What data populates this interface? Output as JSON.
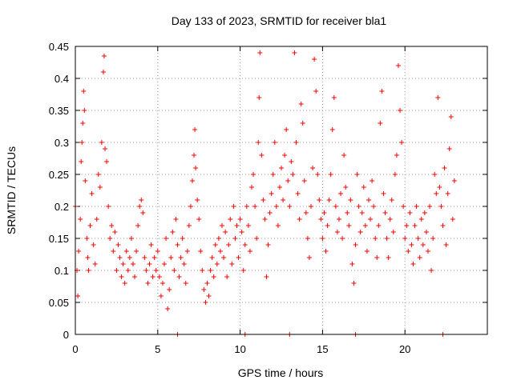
{
  "chart_data": {
    "type": "scatter",
    "title": "Day 133 of 2023, SRMTID for receiver bla1",
    "xlabel": "GPS time / hours",
    "ylabel": "SRMTID / TECUs",
    "xlim": [
      0,
      25
    ],
    "ylim": [
      0,
      0.45
    ],
    "xticks": [
      0,
      5,
      10,
      15,
      20
    ],
    "xtick_labels": [
      "0",
      "5",
      "10",
      "15",
      "20"
    ],
    "yticks": [
      0,
      0.05,
      0.1,
      0.15,
      0.2,
      0.25,
      0.3,
      0.35,
      0.4,
      0.45
    ],
    "ytick_labels": [
      "0",
      "0.05",
      "0.1",
      "0.15",
      "0.2",
      "0.25",
      "0.3",
      "0.35",
      "0.4",
      "0.45"
    ],
    "grid": true,
    "marker": "+",
    "color": "#ff0000",
    "series": [
      {
        "name": "SRMTID",
        "points": [
          [
            0.0,
            0.2
          ],
          [
            0.1,
            0.1
          ],
          [
            0.15,
            0.06
          ],
          [
            0.2,
            0.13
          ],
          [
            0.3,
            0.18
          ],
          [
            0.35,
            0.27
          ],
          [
            0.4,
            0.3
          ],
          [
            0.45,
            0.33
          ],
          [
            0.5,
            0.38
          ],
          [
            0.55,
            0.35
          ],
          [
            0.6,
            0.24
          ],
          [
            0.7,
            0.15
          ],
          [
            0.75,
            0.12
          ],
          [
            0.8,
            0.1
          ],
          [
            0.9,
            0.17
          ],
          [
            1.0,
            0.22
          ],
          [
            1.1,
            0.14
          ],
          [
            1.2,
            0.11
          ],
          [
            1.3,
            0.18
          ],
          [
            1.4,
            0.25
          ],
          [
            1.5,
            0.23
          ],
          [
            1.6,
            0.3
          ],
          [
            1.7,
            0.41
          ],
          [
            1.75,
            0.435
          ],
          [
            1.8,
            0.29
          ],
          [
            1.9,
            0.27
          ],
          [
            2.0,
            0.2
          ],
          [
            2.1,
            0.15
          ],
          [
            2.2,
            0.17
          ],
          [
            2.3,
            0.13
          ],
          [
            2.4,
            0.16
          ],
          [
            2.5,
            0.1
          ],
          [
            2.6,
            0.14
          ],
          [
            2.7,
            0.12
          ],
          [
            2.8,
            0.09
          ],
          [
            2.9,
            0.11
          ],
          [
            3.0,
            0.08
          ],
          [
            3.1,
            0.13
          ],
          [
            3.2,
            0.1
          ],
          [
            3.3,
            0.12
          ],
          [
            3.4,
            0.15
          ],
          [
            3.5,
            0.11
          ],
          [
            3.6,
            0.09
          ],
          [
            3.7,
            0.13
          ],
          [
            3.8,
            0.17
          ],
          [
            3.9,
            0.2
          ],
          [
            4.0,
            0.21
          ],
          [
            4.1,
            0.19
          ],
          [
            4.2,
            0.12
          ],
          [
            4.3,
            0.1
          ],
          [
            4.4,
            0.08
          ],
          [
            4.5,
            0.11
          ],
          [
            4.6,
            0.14
          ],
          [
            4.7,
            0.09
          ],
          [
            4.8,
            0.12
          ],
          [
            4.9,
            0.1
          ],
          [
            5.0,
            0.13
          ],
          [
            5.1,
            0.09
          ],
          [
            5.2,
            0.06
          ],
          [
            5.3,
            0.08
          ],
          [
            5.4,
            0.11
          ],
          [
            5.5,
            0.15
          ],
          [
            5.6,
            0.04
          ],
          [
            5.7,
            0.07
          ],
          [
            5.8,
            0.12
          ],
          [
            5.9,
            0.16
          ],
          [
            6.0,
            0.1
          ],
          [
            6.1,
            0.18
          ],
          [
            6.2,
            0.14
          ],
          [
            6.3,
            0.09
          ],
          [
            6.4,
            0.12
          ],
          [
            6.5,
            0.15
          ],
          [
            6.6,
            0.11
          ],
          [
            6.7,
            0.08
          ],
          [
            6.8,
            0.13
          ],
          [
            6.9,
            0.17
          ],
          [
            7.0,
            0.2
          ],
          [
            7.1,
            0.24
          ],
          [
            7.2,
            0.28
          ],
          [
            7.25,
            0.32
          ],
          [
            7.3,
            0.26
          ],
          [
            7.4,
            0.21
          ],
          [
            7.5,
            0.18
          ],
          [
            7.6,
            0.13
          ],
          [
            7.7,
            0.1
          ],
          [
            7.8,
            0.07
          ],
          [
            7.9,
            0.05
          ],
          [
            8.0,
            0.08
          ],
          [
            8.1,
            0.06
          ],
          [
            8.2,
            0.1
          ],
          [
            8.3,
            0.12
          ],
          [
            8.4,
            0.09
          ],
          [
            8.5,
            0.14
          ],
          [
            8.6,
            0.11
          ],
          [
            8.7,
            0.15
          ],
          [
            8.8,
            0.13
          ],
          [
            8.9,
            0.17
          ],
          [
            9.0,
            0.12
          ],
          [
            9.1,
            0.16
          ],
          [
            9.2,
            0.09
          ],
          [
            9.3,
            0.14
          ],
          [
            9.4,
            0.18
          ],
          [
            9.5,
            0.11
          ],
          [
            9.6,
            0.2
          ],
          [
            9.7,
            0.15
          ],
          [
            9.8,
            0.17
          ],
          [
            9.9,
            0.12
          ],
          [
            10.0,
            0.18
          ],
          [
            10.1,
            0.16
          ],
          [
            10.2,
            0.1
          ],
          [
            10.3,
            0.14
          ],
          [
            10.4,
            0.2
          ],
          [
            10.5,
            0.17
          ],
          [
            10.6,
            0.13
          ],
          [
            10.7,
            0.23
          ],
          [
            10.8,
            0.25
          ],
          [
            10.9,
            0.2
          ],
          [
            11.0,
            0.15
          ],
          [
            11.1,
            0.3
          ],
          [
            11.15,
            0.37
          ],
          [
            11.2,
            0.44
          ],
          [
            11.3,
            0.28
          ],
          [
            11.4,
            0.21
          ],
          [
            11.5,
            0.18
          ],
          [
            11.6,
            0.09
          ],
          [
            11.7,
            0.14
          ],
          [
            11.8,
            0.19
          ],
          [
            11.9,
            0.22
          ],
          [
            12.0,
            0.25
          ],
          [
            12.1,
            0.3
          ],
          [
            12.2,
            0.2
          ],
          [
            12.3,
            0.17
          ],
          [
            12.4,
            0.23
          ],
          [
            12.5,
            0.26
          ],
          [
            12.6,
            0.21
          ],
          [
            12.7,
            0.28
          ],
          [
            12.8,
            0.32
          ],
          [
            12.9,
            0.24
          ],
          [
            13.0,
            0.2
          ],
          [
            13.1,
            0.27
          ],
          [
            13.2,
            0.25
          ],
          [
            13.3,
            0.44
          ],
          [
            13.4,
            0.3
          ],
          [
            13.5,
            0.22
          ],
          [
            13.6,
            0.18
          ],
          [
            13.7,
            0.36
          ],
          [
            13.8,
            0.33
          ],
          [
            13.9,
            0.24
          ],
          [
            14.0,
            0.19
          ],
          [
            14.1,
            0.15
          ],
          [
            14.2,
            0.12
          ],
          [
            14.3,
            0.2
          ],
          [
            14.4,
            0.26
          ],
          [
            14.5,
            0.43
          ],
          [
            14.6,
            0.38
          ],
          [
            14.7,
            0.25
          ],
          [
            14.8,
            0.21
          ],
          [
            14.9,
            0.18
          ],
          [
            15.0,
            0.15
          ],
          [
            15.1,
            0.19
          ],
          [
            15.2,
            0.13
          ],
          [
            15.3,
            0.17
          ],
          [
            15.4,
            0.21
          ],
          [
            15.5,
            0.25
          ],
          [
            15.6,
            0.32
          ],
          [
            15.7,
            0.37
          ],
          [
            15.8,
            0.2
          ],
          [
            15.9,
            0.16
          ],
          [
            16.0,
            0.18
          ],
          [
            16.1,
            0.22
          ],
          [
            16.2,
            0.15
          ],
          [
            16.3,
            0.28
          ],
          [
            16.4,
            0.23
          ],
          [
            16.5,
            0.19
          ],
          [
            16.6,
            0.17
          ],
          [
            16.7,
            0.21
          ],
          [
            16.8,
            0.11
          ],
          [
            16.9,
            0.08
          ],
          [
            17.0,
            0.14
          ],
          [
            17.1,
            0.25
          ],
          [
            17.2,
            0.2
          ],
          [
            17.3,
            0.16
          ],
          [
            17.4,
            0.19
          ],
          [
            17.5,
            0.23
          ],
          [
            17.6,
            0.17
          ],
          [
            17.7,
            0.13
          ],
          [
            17.8,
            0.21
          ],
          [
            17.9,
            0.18
          ],
          [
            18.0,
            0.24
          ],
          [
            18.1,
            0.2
          ],
          [
            18.2,
            0.15
          ],
          [
            18.3,
            0.12
          ],
          [
            18.4,
            0.17
          ],
          [
            18.5,
            0.33
          ],
          [
            18.6,
            0.38
          ],
          [
            18.7,
            0.22
          ],
          [
            18.8,
            0.19
          ],
          [
            18.9,
            0.15
          ],
          [
            19.0,
            0.12
          ],
          [
            19.1,
            0.18
          ],
          [
            19.2,
            0.21
          ],
          [
            19.3,
            0.16
          ],
          [
            19.4,
            0.25
          ],
          [
            19.5,
            0.28
          ],
          [
            19.6,
            0.42
          ],
          [
            19.7,
            0.35
          ],
          [
            19.8,
            0.3
          ],
          [
            19.9,
            0.2
          ],
          [
            20.0,
            0.15
          ],
          [
            20.1,
            0.17
          ],
          [
            20.2,
            0.13
          ],
          [
            20.3,
            0.19
          ],
          [
            20.4,
            0.14
          ],
          [
            20.5,
            0.11
          ],
          [
            20.6,
            0.17
          ],
          [
            20.7,
            0.2
          ],
          [
            20.8,
            0.15
          ],
          [
            20.9,
            0.12
          ],
          [
            21.0,
            0.18
          ],
          [
            21.1,
            0.14
          ],
          [
            21.2,
            0.19
          ],
          [
            21.3,
            0.16
          ],
          [
            21.4,
            0.13
          ],
          [
            21.5,
            0.2
          ],
          [
            21.6,
            0.1
          ],
          [
            21.7,
            0.15
          ],
          [
            21.8,
            0.25
          ],
          [
            21.9,
            0.22
          ],
          [
            22.0,
            0.37
          ],
          [
            22.1,
            0.23
          ],
          [
            22.2,
            0.2
          ],
          [
            22.3,
            0.17
          ],
          [
            22.4,
            0.26
          ],
          [
            22.5,
            0.14
          ],
          [
            22.6,
            0.22
          ],
          [
            22.7,
            0.29
          ],
          [
            22.8,
            0.34
          ],
          [
            22.9,
            0.18
          ],
          [
            23.0,
            0.24
          ]
        ]
      }
    ],
    "zero_markers_x": [
      6.2,
      10.3,
      13.0,
      17.0,
      22.3
    ]
  }
}
